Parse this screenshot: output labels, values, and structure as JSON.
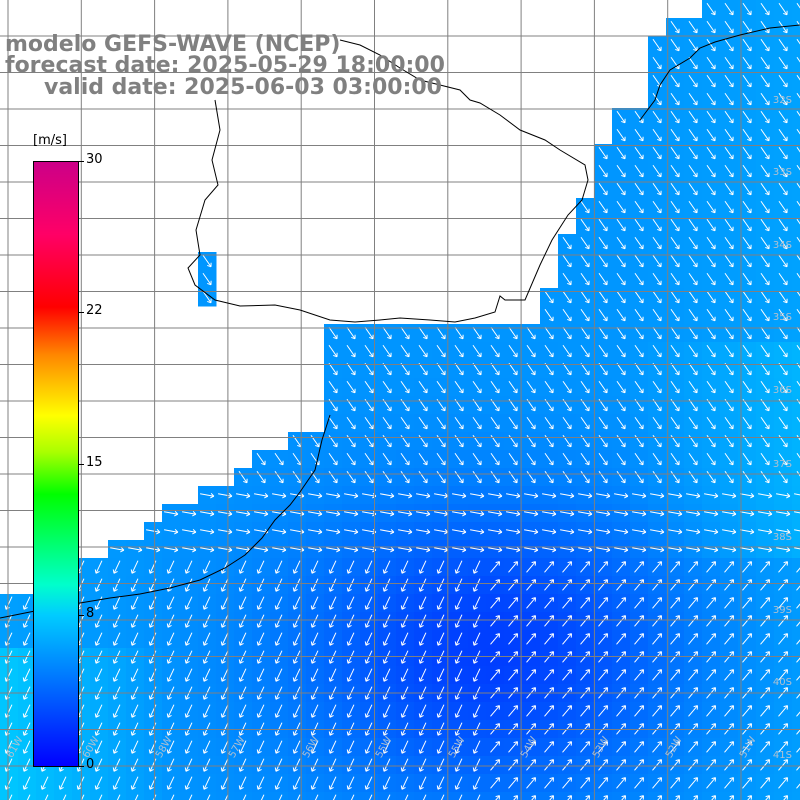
{
  "title": {
    "line1": "modelo GEFS-WAVE (NCEP)",
    "line2": "forecast date: 2025-05-29 18:00:00",
    "line3": "valid date: 2025-06-03 03:00:00"
  },
  "colorbar": {
    "unit": "[m/s]",
    "ticks": [
      "30",
      "22",
      "15",
      "8",
      "0"
    ],
    "min": 0,
    "max": 30,
    "colors": [
      "#0000ff",
      "#00ccff",
      "#00ff00",
      "#ffff00",
      "#ff8800",
      "#ff0000",
      "#cc0088"
    ]
  },
  "map": {
    "lat_labels": [
      "32S",
      "33S",
      "34S",
      "35S",
      "36S",
      "37S",
      "38S",
      "39S",
      "40S",
      "41S"
    ],
    "lon_labels": [
      "61W",
      "60W",
      "58W",
      "57W",
      "56W",
      "55W",
      "54W",
      "53W",
      "52W",
      "51W"
    ],
    "land_color": "#ffffff",
    "grid_color": "#808080",
    "arrow_color": "#ffffff"
  }
}
